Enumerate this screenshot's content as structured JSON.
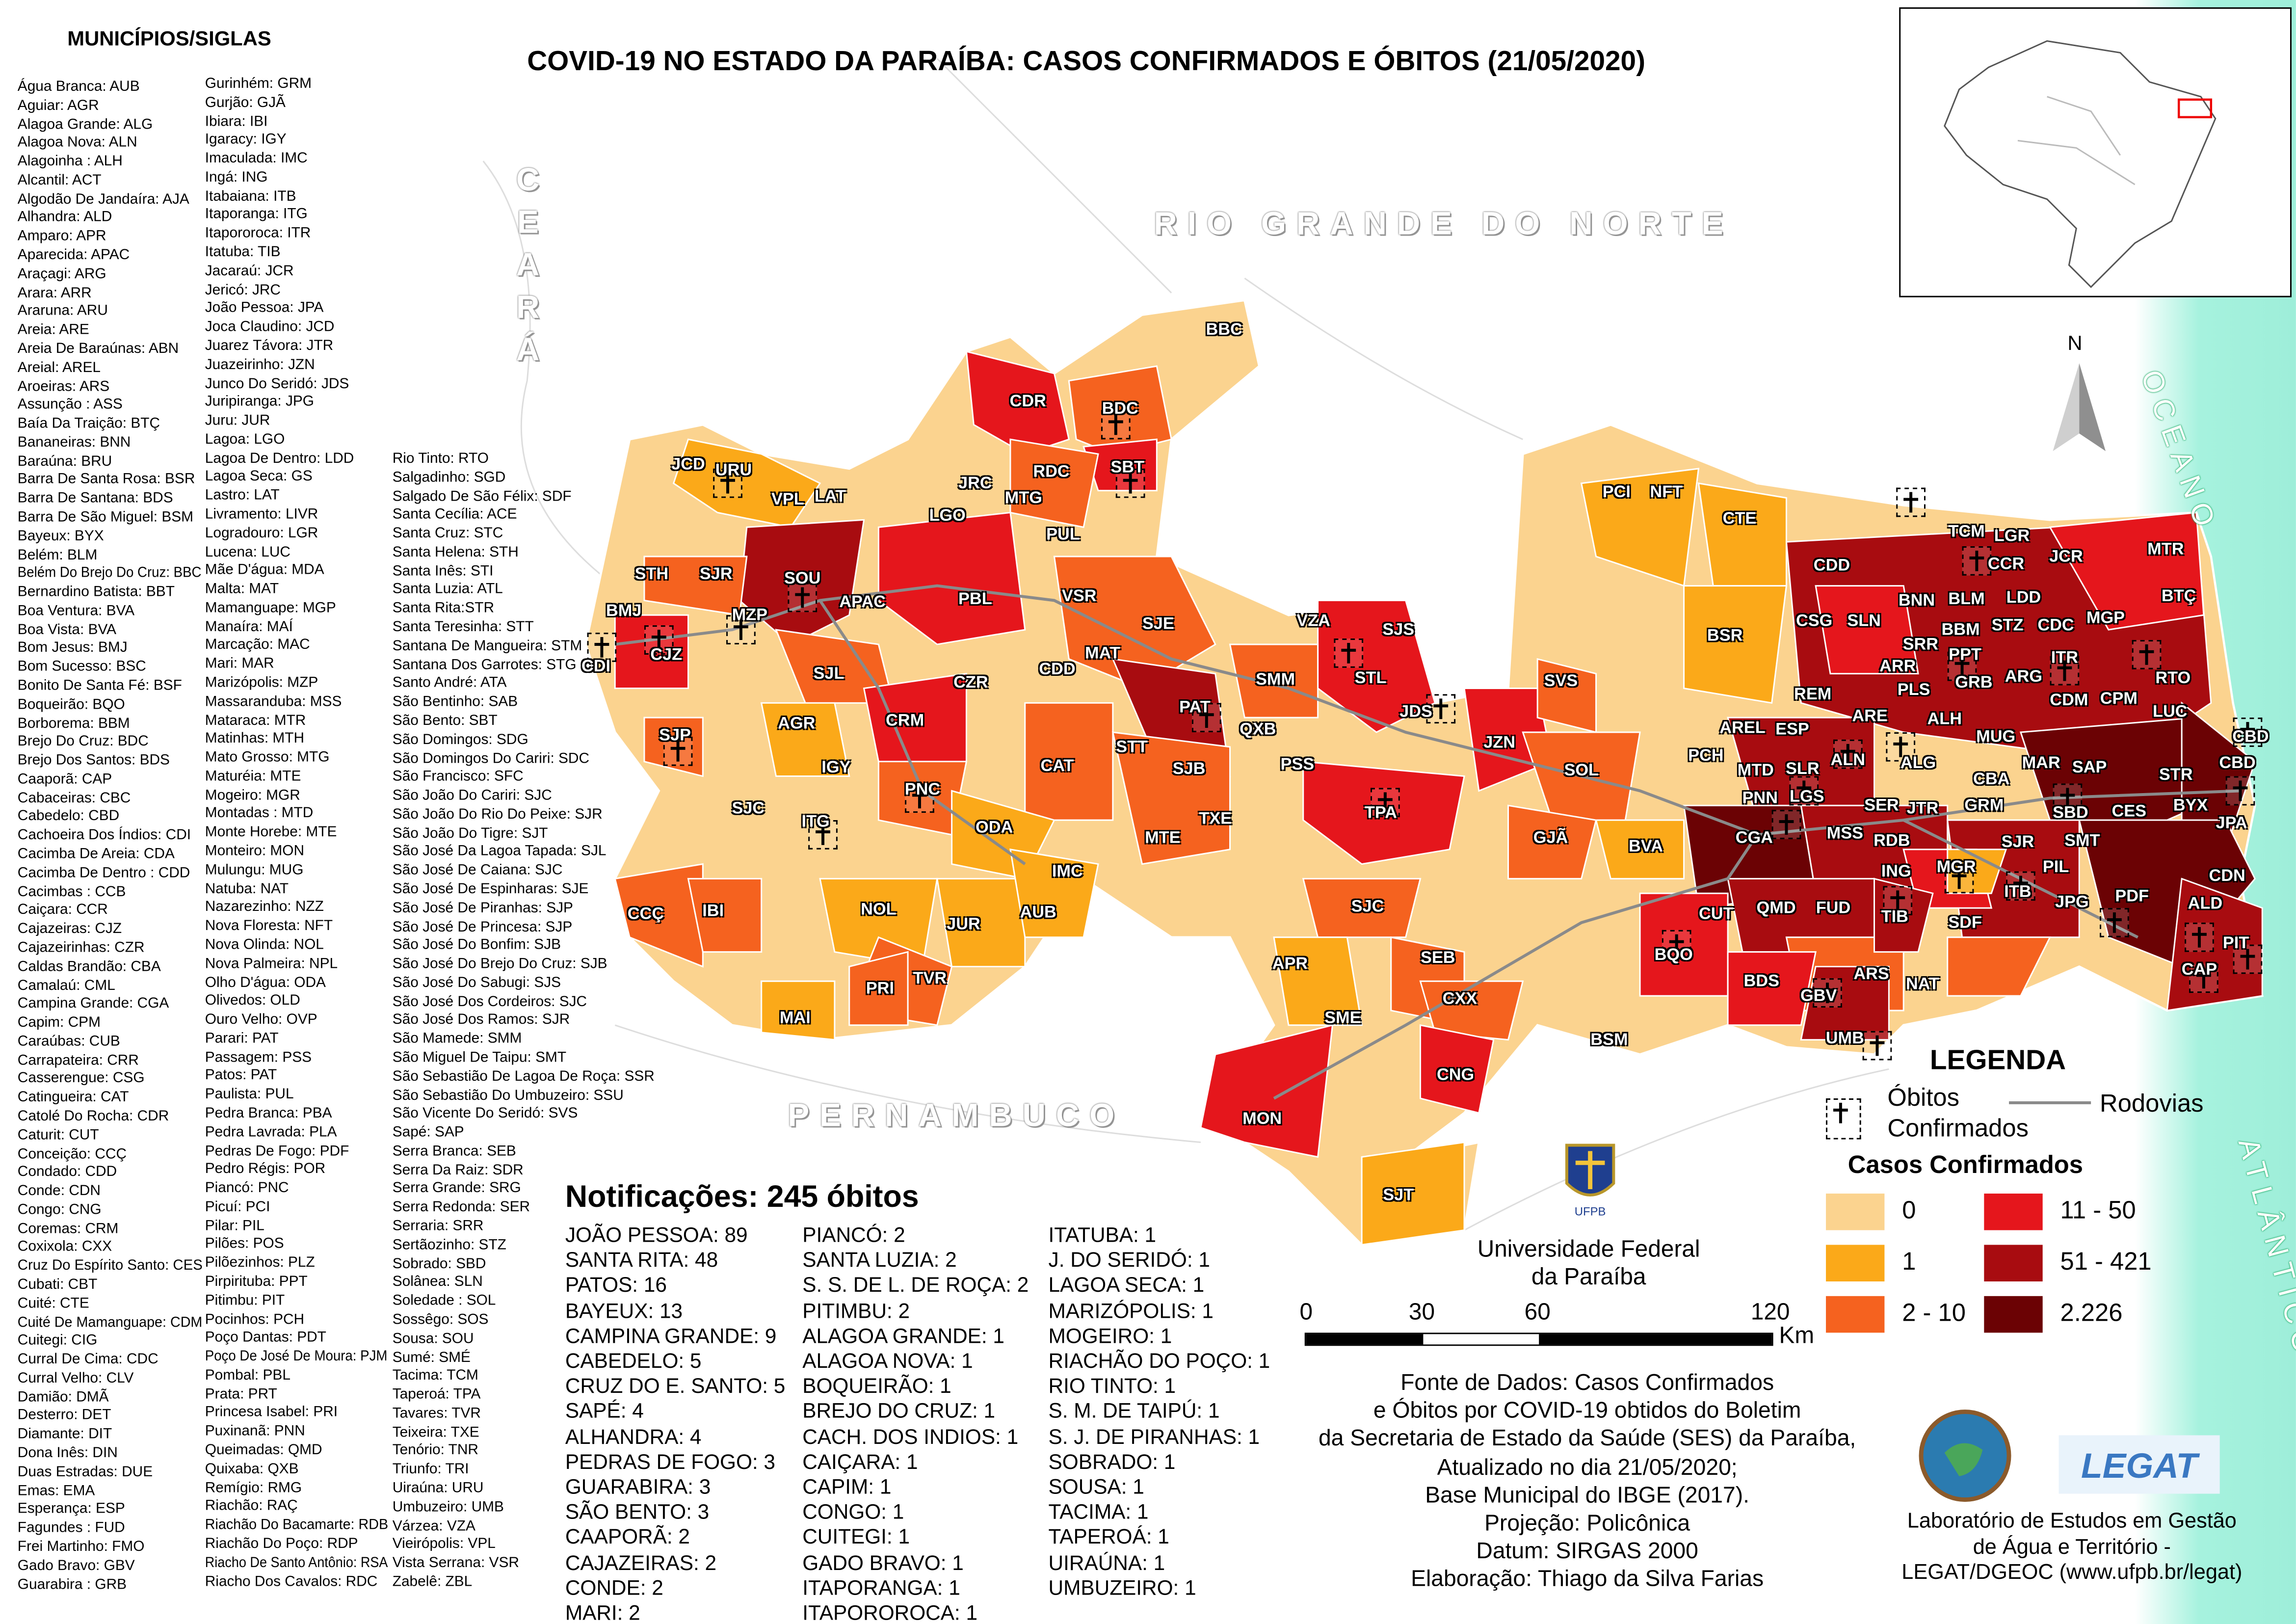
{
  "title": "COVID-19 NO ESTADO DA PARAÍBA: CASOS CONFIRMADOS E  ÓBITOS (21/05/2020)",
  "municipalities": {
    "heading": "MUNICÍPIOS/SIGLAS",
    "col1": [
      "Água Branca: AUB",
      "Aguiar: AGR",
      "Alagoa Grande: ALG",
      "Alagoa Nova: ALN",
      "Alagoinha : ALH",
      "Alcantil: ACT",
      "Algodão De Jandaíra: AJA",
      "Alhandra: ALD",
      "Amparo: APR",
      "Aparecida: APAC",
      "Araçagi: ARG",
      "Arara: ARR",
      "Araruna: ARU",
      "Areia: ARE",
      "Areia De Baraúnas: ABN",
      "Areial: AREL",
      "Aroeiras: ARS",
      "Assunção : ASS",
      "Baía Da Traição: BTÇ",
      "Bananeiras: BNN",
      "Baraúna: BRU",
      "Barra De Santa Rosa: BSR",
      "Barra De Santana: BDS",
      "Barra De São Miguel: BSM",
      "Bayeux: BYX",
      "Belém: BLM",
      "Belém Do Brejo Do Cruz: BBC",
      "Bernardino Batista: BBT",
      "Boa Ventura: BVA",
      "Boa Vista: BVA",
      "Bom Jesus: BMJ",
      "Bom Sucesso: BSC",
      "Bonito De Santa Fé: BSF",
      "Boqueirão: BQO",
      "Borborema: BBM",
      "Brejo Do Cruz: BDC",
      "Brejo Dos Santos: BDS",
      "Caaporã: CAP",
      "Cabaceiras: CBC",
      "Cabedelo: CBD",
      "Cachoeira Dos Índios: CDI",
      "Cacimba De Areia: CDA",
      "Cacimba De Dentro : CDD",
      "Cacimbas : CCB",
      "Caiçara: CCR",
      "Cajazeiras: CJZ",
      "Cajazeirinhas: CZR",
      "Caldas Brandão: CBA",
      "Camalaú: CML",
      "Campina Grande: CGA",
      "Capim: CPM",
      "Caraúbas: CUB",
      "Carrapateira: CRR",
      "Casserengue: CSG",
      "Catingueira: CAT",
      "Catolé Do Rocha: CDR",
      "Caturit: CUT",
      "Conceição: CCÇ",
      "Condado: CDD",
      "Conde: CDN",
      "Congo: CNG",
      "Coremas: CRM",
      "Coxixola: CXX",
      "Cruz Do Espírito Santo: CES",
      "Cubati: CBT",
      "Cuité: CTE",
      "Cuité De Mamanguape: CDM",
      "Cuitegi: CIG",
      "Curral De Cima: CDC",
      "Curral Velho: CLV",
      "Damião: DMÃ",
      "Desterro: DET",
      "Diamante: DIT",
      "Dona Inês: DIN",
      "Duas Estradas: DUE",
      "Emas: EMA",
      "Esperança: ESP",
      "Fagundes : FUD",
      "Frei Martinho: FMO",
      "Gado Bravo: GBV",
      "Guarabira : GRB"
    ],
    "col2": [
      "Gurinhém: GRM",
      "Gurjão: GJÃ",
      "Ibiara: IBI",
      "Igaracy: IGY",
      "Imaculada: IMC",
      "Ingá: ING",
      "Itabaiana: ITB",
      "Itaporanga: ITG",
      "Itapororoca: ITR",
      "Itatuba: TIB",
      "Jacaraú: JCR",
      "Jericó: JRC",
      "João Pessoa: JPA",
      "Joca Claudino: JCD",
      "Juarez Távora: JTR",
      "Juazeirinho: JZN",
      "Junco Do Seridó: JDS",
      "Juripiranga: JPG",
      "Juru: JUR",
      "Lagoa: LGO",
      "Lagoa De Dentro: LDD",
      "Lagoa Seca: GS",
      "Lastro: LAT",
      "Livramento: LIVR",
      "Logradouro: LGR",
      "Lucena: LUC",
      "Mãe D'água: MDA",
      "Malta: MAT",
      "Mamanguape: MGP",
      "Manaíra: MAÍ",
      "Marcação: MAC",
      "Mari: MAR",
      "Marizópolis: MZP",
      "Massaranduba: MSS",
      "Mataraca: MTR",
      "Matinhas: MTH",
      "Mato Grosso: MTG",
      "Maturéia: MTE",
      "Mogeiro: MGR",
      "Montadas : MTD",
      "Monte Horebe: MTE",
      "Monteiro: MON",
      "Mulungu: MUG",
      "Natuba: NAT",
      "Nazarezinho: NZZ",
      "Nova Floresta: NFT",
      "Nova Olinda: NOL",
      "Nova Palmeira: NPL",
      "Olho D'água: ODA",
      "Olivedos: OLD",
      "Ouro Velho: OVP",
      "Parari: PAT",
      "Passagem: PSS",
      "Patos: PAT",
      "Paulista: PUL",
      "Pedra Branca: PBA",
      "Pedra Lavrada: PLA",
      "Pedras De Fogo: PDF",
      "Pedro Régis: POR",
      "Piancó: PNC",
      "Picuí: PCI",
      "Pilar: PIL",
      "Pilões: POS",
      "Pilõezinhos: PLZ",
      "Pirpirituba: PPT",
      "Pitimbu: PIT",
      "Pocinhos: PCH",
      "Poço Dantas: PDT",
      "Poço De José De Moura: PJM",
      "Pombal: PBL",
      "Prata: PRT",
      "Princesa Isabel: PRI",
      "Puxinanã: PNN",
      "Queimadas: QMD",
      "Quixaba: QXB",
      "Remígio: RMG",
      "Riachão: RAÇ",
      "Riachão Do Bacamarte: RDB",
      "Riachão Do Poço: RDP",
      "Riacho De Santo Antônio: RSA",
      "Riacho Dos Cavalos: RDC"
    ],
    "col3": [
      "Rio Tinto:  RTO",
      "Salgadinho: SGD",
      "Salgado De São Félix: SDF",
      "Santa Cecília: ACE",
      "Santa Cruz: STC",
      "Santa Helena: STH",
      "Santa Inês: STI",
      "Santa Luzia: ATL",
      "Santa Rita:STR",
      "Santa Teresinha: STT",
      "Santana De Mangueira: STM",
      "Santana Dos Garrotes: STG",
      "Santo André: ATA",
      "São Bentinho: SAB",
      "São Bento: SBT",
      "São Domingos: SDG",
      "São Domingos Do Cariri: SDC",
      "São Francisco: SFC",
      "São João Do Cariri: SJC",
      "São João Do Rio Do Peixe: SJR",
      "São João Do Tigre: SJT",
      "São José Da Lagoa Tapada: SJL",
      "São José De Caiana: SJC",
      "São José De Espinharas: SJE",
      "São José De Piranhas: SJP",
      "São José De Princesa: SJP",
      "São José Do Bonfim: SJB",
      "São José Do Brejo Do Cruz: SJB",
      "São José Do Sabugi: SJS",
      "São José Dos Cordeiros: SJC",
      "São José Dos Ramos: SJR",
      "São Mamede: SMM",
      "São Miguel De Taipu: SMT",
      "São Sebastião De Lagoa De Roça: SSR",
      "São Sebastião Do Umbuzeiro: SSU",
      "São Vicente Do Seridó: SVS",
      "Sapé: SAP",
      "Serra Branca: SEB",
      "Serra Da Raiz: SDR",
      "Serra Grande: SRG",
      "Serra Redonda: SER",
      "Serraria: SRR",
      "Sertãozinho: STZ",
      "Sobrado: SBD",
      "Solânea: SLN",
      "Soledade : SOL",
      "Sossêgo: SOS",
      "Sousa: SOU",
      "Sumé: SMÉ",
      "Tacima: TCM",
      "Taperoá: TPA",
      "Tavares: TVR",
      "Teixeira: TXE",
      "Tenório: TNR",
      "Triunfo: TRI",
      "Uiraúna: URU",
      "Umbuzeiro: UMB",
      "Várzea: VZA",
      "Vieirópolis: VPL",
      "Vista Serrana: VSR",
      "Zabelê: ZBL"
    ]
  },
  "neighbors": {
    "ceara": "CEARÁ",
    "rn": "RIO GRANDE DO NORTE",
    "pe": "PERNAMBUCO",
    "ocean1": "OCEANO",
    "ocean2": "ATLÂNTICO"
  },
  "north_label": "N",
  "map_labels": [
    "BBC",
    "CDR",
    "BDC",
    "SBT",
    "RDC",
    "JCD",
    "URU",
    "VPL",
    "LAT",
    "JRC",
    "MTG",
    "LGO",
    "PUL",
    "STH",
    "SJR",
    "SOU",
    "APAC",
    "PBL",
    "VSR",
    "BMJ",
    "MZP",
    "CJZ",
    "CDI",
    "SJE",
    "MAT",
    "CDD",
    "VZA",
    "SJS",
    "STL",
    "SJL",
    "CZR",
    "SMM",
    "PAT",
    "QXB",
    "JDS",
    "AGR",
    "CRM",
    "SJP",
    "STT",
    "SJB",
    "PSS",
    "IGY",
    "CAT",
    "PNC",
    "SJC",
    "ITG",
    "ODA",
    "TXE",
    "MTE",
    "TPA",
    "JZN",
    "SOL",
    "GJÃ",
    "BVA",
    "SVS",
    "IMC",
    "CCÇ",
    "IBI",
    "NOL",
    "JUR",
    "AUB",
    "TVR",
    "PRI",
    "MAI",
    "SJC",
    "APR",
    "SEB",
    "SME",
    "CXX",
    "BSM",
    "CNG",
    "MON",
    "SJT",
    "PCI",
    "NFT",
    "CTE",
    "CDD",
    "CSG",
    "SLN",
    "BSR",
    "BNN",
    "BLM",
    "LDD",
    "TCM",
    "LGR",
    "CCR",
    "JCR",
    "MTR",
    "BTÇ",
    "BBM",
    "STZ",
    "CDC",
    "MGP",
    "PPT",
    "ARR",
    "SRR",
    "ITR",
    "PLS",
    "GRB",
    "ARG",
    "RTO",
    "REM",
    "ARE",
    "CDM",
    "CPM",
    "ALH",
    "LUC",
    "CBD",
    "AREL",
    "ESP",
    "MUG",
    "CBA",
    "MAR",
    "SAP",
    "STR",
    "MTD",
    "SLR",
    "ALN",
    "ALG",
    "PCH",
    "CBD",
    "BYX",
    "GRM",
    "SBD",
    "CES",
    "JPA",
    "PNN",
    "LGS",
    "SER",
    "JTR",
    "CGA",
    "MSS",
    "RDB",
    "SJR",
    "SMT",
    "PIL",
    "ING",
    "MGR",
    "CDN",
    "CUT",
    "QMD",
    "FUD",
    "TIB",
    "ITB",
    "JPG",
    "PDF",
    "ALD",
    "SDF",
    "BQO",
    "BDS",
    "ARS",
    "NAT",
    "PIT",
    "CAP",
    "GBV",
    "UMB"
  ],
  "notifications": {
    "title": "Notificações: 245 óbitos",
    "col1": [
      "JOÃO PESSOA: 89",
      "SANTA RITA: 48",
      "PATOS: 16",
      "BAYEUX: 13",
      "CAMPINA GRANDE: 9",
      "CABEDELO: 5",
      "CRUZ DO E. SANTO: 5",
      "SAPÉ: 4",
      "ALHANDRA: 4",
      "PEDRAS DE FOGO: 3",
      "GUARABIRA: 3",
      "SÃO BENTO: 3",
      "CAAPORÃ: 2",
      "CAJAZEIRAS: 2",
      "CONDE: 2",
      "MARI: 2"
    ],
    "col2": [
      "PIANCÓ: 2",
      "SANTA LUZIA: 2",
      "S. S. DE L. DE ROÇA: 2",
      "PITIMBU: 2",
      "ALAGOA GRANDE: 1",
      "ALAGOA  NOVA: 1",
      "BOQUEIRÃO: 1",
      "BREJO DO CRUZ: 1",
      "CACH. DOS INDIOS: 1",
      "CAIÇARA: 1",
      "CAPIM: 1",
      "CONGO: 1",
      "CUITEGI: 1",
      "GADO BRAVO: 1",
      "ITAPORANGA: 1",
      "ITAPOROROCA: 1"
    ],
    "col3": [
      "ITATUBA: 1",
      "J. DO SERIDÓ: 1",
      "LAGOA SECA: 1",
      "MARIZÓPOLIS: 1",
      "MOGEIRO: 1",
      "RIACHÃO DO POÇO: 1",
      "RIO TINTO: 1",
      "S. M. DE TAIPÚ: 1",
      "S. J. DE PIRANHAS: 1",
      "SOBRADO: 1",
      "SOUSA: 1",
      "TACIMA: 1",
      "TAPEROÁ: 1",
      "UIRAÚNA: 1",
      "UMBUZEIRO: 1"
    ]
  },
  "legend": {
    "title": "LEGENDA",
    "deaths": "Óbitos",
    "deaths2": "Confirmados",
    "roads": "Rodovias",
    "cases_title": "Casos Confirmados",
    "classes": [
      {
        "label": "0",
        "color": "#fbd38f"
      },
      {
        "label": "1",
        "color": "#fba919"
      },
      {
        "label": "2 - 10",
        "color": "#f5621f"
      },
      {
        "label": "11 - 50",
        "color": "#e5161c"
      },
      {
        "label": "51 - 421",
        "color": "#a80c10"
      },
      {
        "label": "2.226",
        "color": "#6b0204"
      }
    ]
  },
  "scale": {
    "ticks": [
      "0",
      "30",
      "60",
      "120"
    ],
    "unit": "Km"
  },
  "ufpb": {
    "logo_text": "UFPB",
    "name1": "Universidade Federal",
    "name2": "da Paraíba"
  },
  "source": [
    "Fonte de Dados: Casos Confirmados",
    "e Óbitos por COVID-19 obtidos do Boletim",
    "da Secretaria de Estado da Saúde (SES) da Paraíba,",
    "Atualizado no dia 21/05/2020;",
    "Base Municipal do IBGE (2017).",
    "Projeção: Policônica",
    "Datum: SIRGAS 2000",
    "Elaboração: Thiago da Silva Farias"
  ],
  "lab": {
    "logo1": "DGEOC",
    "logo2": "LEGAT",
    "text": [
      "Laboratório de Estudos em Gestão",
      "de Água e Território -",
      "LEGAT/DGEOC (www.ufpb.br/legat)"
    ]
  }
}
